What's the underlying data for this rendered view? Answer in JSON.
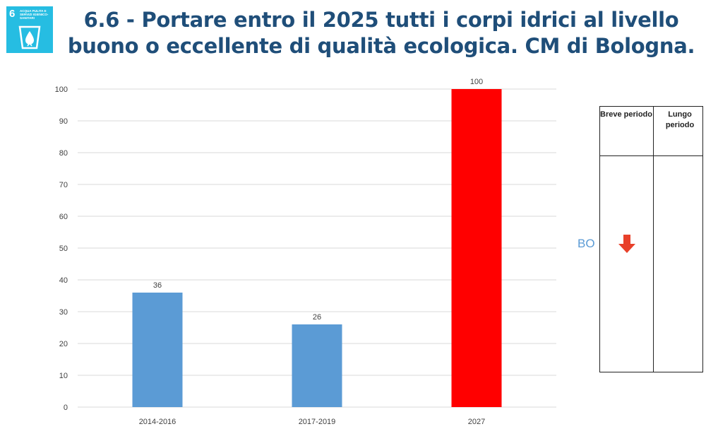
{
  "badge": {
    "number": "6",
    "caption": "Acqua pulita e servizi igienico-sanitari",
    "icon": "water-drop-glass-icon",
    "color": "#26bde2"
  },
  "title": {
    "line1": "6.6 - Portare entro il 2025 tutti i corpi idrici al livello",
    "line2": "buono o eccellente di qualità ecologica. CM di Bologna."
  },
  "chart_data": {
    "type": "bar",
    "categories": [
      "2014-2016",
      "2017-2019",
      "2027"
    ],
    "values": [
      36,
      26,
      100
    ],
    "data_labels": [
      "36",
      "26",
      "100"
    ],
    "colors": [
      "#5b9bd5",
      "#5b9bd5",
      "#ff0000"
    ],
    "ylim": [
      0,
      100
    ],
    "yticks": [
      "0",
      "10",
      "20",
      "30",
      "40",
      "50",
      "60",
      "70",
      "80",
      "90",
      "100"
    ],
    "grid": true,
    "xlabel": "",
    "ylabel": ""
  },
  "trend_table": {
    "headers": [
      "Breve periodo",
      "Lungo periodo"
    ],
    "row_label": "BO",
    "short_term_icon": "arrow-down-icon",
    "short_term_color": "#e8402a"
  }
}
